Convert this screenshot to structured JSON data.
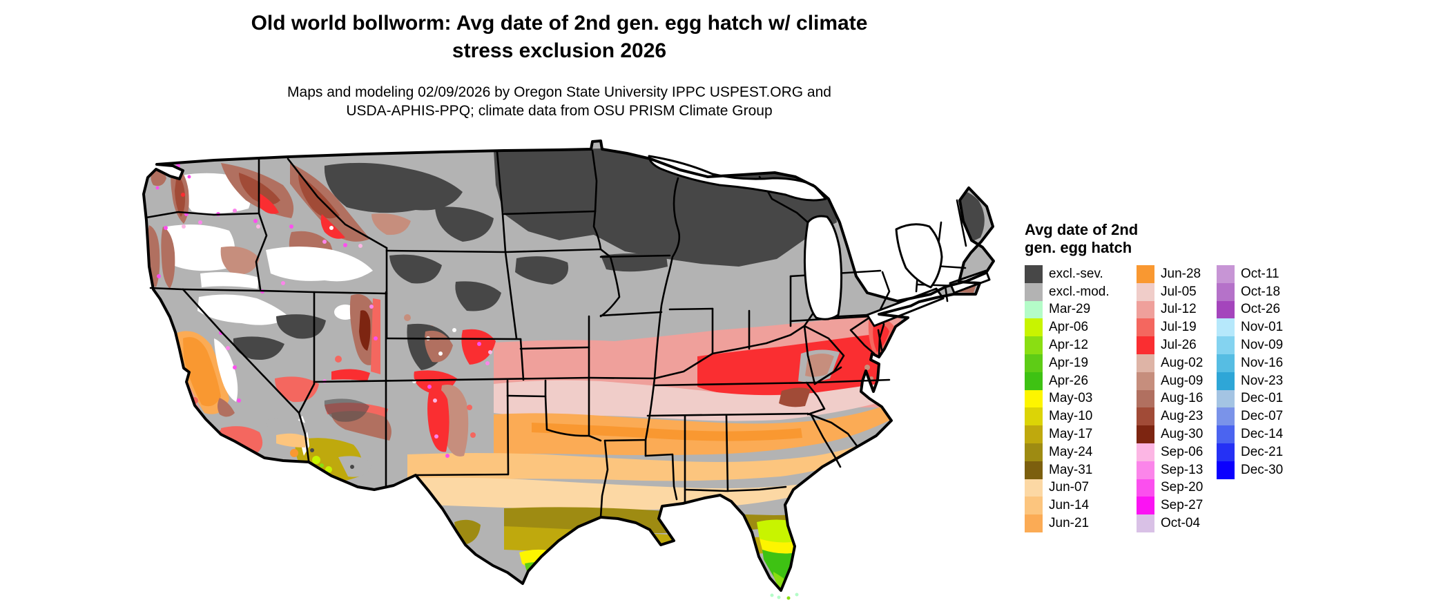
{
  "title": {
    "line1": "Old world bollworm: Avg date of 2nd gen. egg hatch w/ climate",
    "line2": "stress exclusion 2026"
  },
  "subtitle": {
    "line1": "Maps and modeling 02/09/2026 by Oregon State University IPPC USPEST.ORG and",
    "line2": "USDA-APHIS-PPQ; climate data from OSU PRISM Climate Group"
  },
  "map": {
    "label": "Continental United States raster map of average date of 2nd generation egg hatch with climate stress exclusion"
  },
  "legend": {
    "title_line1": "Avg date of 2nd",
    "title_line2": "gen. egg hatch",
    "columns": [
      {
        "entries": [
          {
            "label": "excl.-sev.",
            "color": "#474747"
          },
          {
            "label": "excl.-mod.",
            "color": "#b3b3b3"
          },
          {
            "label": "Mar-29",
            "color": "#b4fcc8"
          },
          {
            "label": "Apr-06",
            "color": "#c8f400"
          },
          {
            "label": "Apr-12",
            "color": "#8ade12"
          },
          {
            "label": "Apr-19",
            "color": "#5ecc16"
          },
          {
            "label": "Apr-26",
            "color": "#3ec213"
          },
          {
            "label": "May-03",
            "color": "#fdf500"
          },
          {
            "label": "May-10",
            "color": "#dcd406"
          },
          {
            "label": "May-17",
            "color": "#bfa90d"
          },
          {
            "label": "May-24",
            "color": "#9e8b12"
          },
          {
            "label": "May-31",
            "color": "#7c5f0e"
          },
          {
            "label": "Jun-07",
            "color": "#fcd8a4"
          },
          {
            "label": "Jun-14",
            "color": "#fcc57e"
          },
          {
            "label": "Jun-21",
            "color": "#fbab55"
          }
        ]
      },
      {
        "entries": [
          {
            "label": "Jun-28",
            "color": "#f99831"
          },
          {
            "label": "Jul-05",
            "color": "#f0cdc9"
          },
          {
            "label": "Jul-12",
            "color": "#efa09b"
          },
          {
            "label": "Jul-19",
            "color": "#f4675f"
          },
          {
            "label": "Jul-26",
            "color": "#fa2e31"
          },
          {
            "label": "Aug-02",
            "color": "#deb4a6"
          },
          {
            "label": "Aug-09",
            "color": "#c68e7d"
          },
          {
            "label": "Aug-16",
            "color": "#b17060"
          },
          {
            "label": "Aug-23",
            "color": "#a14b37"
          },
          {
            "label": "Aug-30",
            "color": "#7d2511"
          },
          {
            "label": "Sep-06",
            "color": "#fcb6e4"
          },
          {
            "label": "Sep-13",
            "color": "#fb85ea"
          },
          {
            "label": "Sep-20",
            "color": "#fb4fee"
          },
          {
            "label": "Sep-27",
            "color": "#fb13f3"
          },
          {
            "label": "Oct-04",
            "color": "#d9c1e6"
          }
        ]
      },
      {
        "entries": [
          {
            "label": "Oct-11",
            "color": "#c795d5"
          },
          {
            "label": "Oct-18",
            "color": "#b572c9"
          },
          {
            "label": "Oct-26",
            "color": "#a445bc"
          },
          {
            "label": "Nov-01",
            "color": "#b6e8fb"
          },
          {
            "label": "Nov-09",
            "color": "#84d3f0"
          },
          {
            "label": "Nov-16",
            "color": "#56bde3"
          },
          {
            "label": "Nov-23",
            "color": "#2ea6d7"
          },
          {
            "label": "Dec-01",
            "color": "#a4c4e3"
          },
          {
            "label": "Dec-07",
            "color": "#7a93e9"
          },
          {
            "label": "Dec-14",
            "color": "#4b64f0"
          },
          {
            "label": "Dec-21",
            "color": "#2531f5"
          },
          {
            "label": "Dec-30",
            "color": "#0b00fe"
          }
        ]
      }
    ]
  }
}
